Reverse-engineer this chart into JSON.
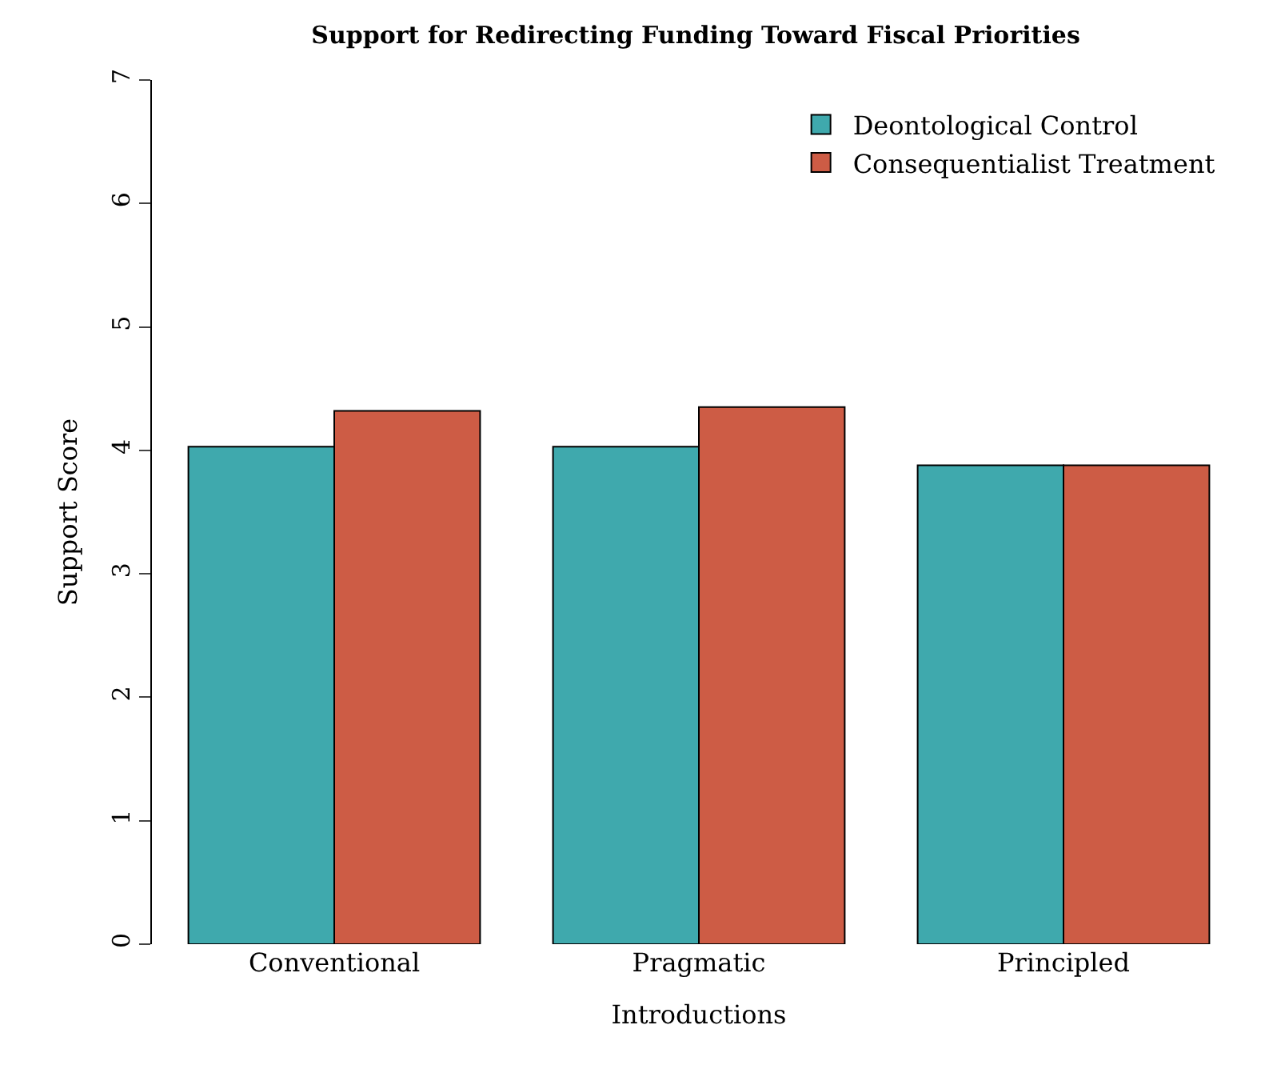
{
  "chart_data": {
    "type": "bar",
    "title": "Support for Redirecting Funding Toward Fiscal Priorities",
    "xlabel": "Introductions",
    "ylabel": "Support Score",
    "categories": [
      "Conventional",
      "Pragmatic",
      "Principled"
    ],
    "series": [
      {
        "name": "Deontological Control",
        "color": "#3fa9ad",
        "values": [
          4.03,
          4.03,
          3.88
        ]
      },
      {
        "name": "Consequentialist Treatment",
        "color": "#cd5c45",
        "values": [
          4.32,
          4.35,
          3.88
        ]
      }
    ],
    "ylim": [
      0,
      7
    ],
    "yticks": [
      0,
      1,
      2,
      3,
      4,
      5,
      6,
      7
    ],
    "grid": false,
    "legend": "top right"
  }
}
